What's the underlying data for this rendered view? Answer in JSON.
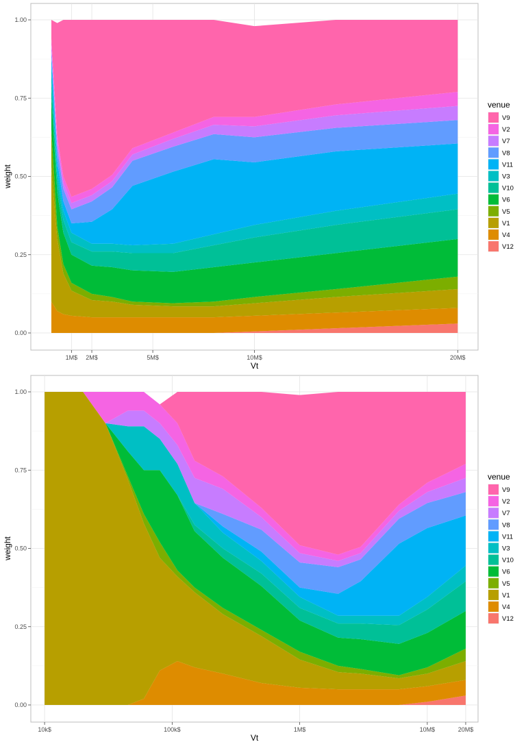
{
  "colors": {
    "V9": "#FF65AC",
    "V2": "#F564E3",
    "V7": "#C77CFF",
    "V8": "#619CFF",
    "V11": "#00B3F5",
    "V3": "#00BFC4",
    "V10": "#00C097",
    "V6": "#00BC38",
    "V5": "#7CAE00",
    "V1": "#B79F00",
    "V4": "#DE8C00",
    "V12": "#F8766D"
  },
  "chart_data": [
    {
      "type": "area",
      "stacked": true,
      "xscale": "linear",
      "xlabel": "Vt",
      "ylabel": "weight",
      "xlim": [
        -1000000,
        21000000
      ],
      "ylim": [
        0,
        1
      ],
      "x_ticks": [
        1000000,
        2000000,
        5000000,
        10000000,
        20000000
      ],
      "x_tick_labels": [
        "1M$",
        "2M$",
        "5M$",
        "10M$",
        "20M$"
      ],
      "y_ticks": [
        0,
        0.25,
        0.5,
        0.75,
        1
      ],
      "y_tick_labels": [
        "0.00",
        "0.25",
        "0.50",
        "0.75",
        "1.00"
      ],
      "legend": {
        "title": "venue",
        "position": "right",
        "entries": [
          "V9",
          "V2",
          "V7",
          "V8",
          "V11",
          "V3",
          "V10",
          "V6",
          "V5",
          "V1",
          "V4",
          "V12"
        ]
      },
      "stack_order_bottom_to_top": [
        "V12",
        "V4",
        "V1",
        "V5",
        "V6",
        "V10",
        "V3",
        "V11",
        "V8",
        "V7",
        "V2",
        "V9"
      ],
      "x": [
        10000,
        300000,
        600000,
        1000000,
        2000000,
        3000000,
        4000000,
        6000000,
        8000000,
        10000000,
        14000000,
        20000000
      ],
      "series": [
        {
          "name": "V12",
          "values": [
            0,
            0,
            0,
            0,
            0,
            0,
            0,
            0,
            0,
            0.005,
            0.015,
            0.03
          ]
        },
        {
          "name": "V4",
          "values": [
            0.1,
            0.07,
            0.06,
            0.055,
            0.05,
            0.05,
            0.05,
            0.05,
            0.05,
            0.05,
            0.05,
            0.05
          ]
        },
        {
          "name": "V1",
          "values": [
            0.43,
            0.23,
            0.13,
            0.08,
            0.055,
            0.05,
            0.04,
            0.035,
            0.035,
            0.04,
            0.05,
            0.06
          ]
        },
        {
          "name": "V5",
          "values": [
            0.12,
            0.04,
            0.03,
            0.025,
            0.02,
            0.015,
            0.01,
            0.01,
            0.015,
            0.02,
            0.025,
            0.04
          ]
        },
        {
          "name": "V6",
          "values": [
            0.1,
            0.11,
            0.1,
            0.09,
            0.09,
            0.095,
            0.1,
            0.1,
            0.11,
            0.11,
            0.115,
            0.12
          ]
        },
        {
          "name": "V10",
          "values": [
            0.05,
            0.04,
            0.04,
            0.04,
            0.045,
            0.05,
            0.055,
            0.06,
            0.07,
            0.08,
            0.09,
            0.095
          ]
        },
        {
          "name": "V3",
          "values": [
            0.05,
            0.03,
            0.03,
            0.03,
            0.025,
            0.025,
            0.025,
            0.03,
            0.035,
            0.04,
            0.045,
            0.05
          ]
        },
        {
          "name": "V11",
          "values": [
            0.03,
            0.03,
            0.03,
            0.03,
            0.07,
            0.11,
            0.19,
            0.23,
            0.24,
            0.2,
            0.19,
            0.16
          ]
        },
        {
          "name": "V8",
          "values": [
            0.02,
            0.04,
            0.04,
            0.045,
            0.065,
            0.07,
            0.08,
            0.08,
            0.08,
            0.08,
            0.075,
            0.075
          ]
        },
        {
          "name": "V7",
          "values": [
            0.02,
            0.02,
            0.02,
            0.02,
            0.02,
            0.02,
            0.02,
            0.025,
            0.03,
            0.035,
            0.04,
            0.045
          ]
        },
        {
          "name": "V2",
          "values": [
            0.02,
            0.02,
            0.02,
            0.02,
            0.02,
            0.02,
            0.02,
            0.02,
            0.025,
            0.03,
            0.035,
            0.045
          ]
        },
        {
          "name": "V9",
          "values": [
            0.06,
            0.36,
            0.5,
            0.565,
            0.54,
            0.495,
            0.41,
            0.36,
            0.31,
            0.29,
            0.27,
            0.23
          ]
        }
      ]
    },
    {
      "type": "area",
      "stacked": true,
      "xscale": "log10",
      "xlabel": "Vt",
      "ylabel": "weight",
      "xlim": [
        7800,
        25000000
      ],
      "ylim": [
        0,
        1
      ],
      "x_ticks": [
        10000,
        100000,
        1000000,
        10000000,
        20000000
      ],
      "x_tick_labels": [
        "10k$",
        "100k$",
        "1M$",
        "10M$",
        "20M$"
      ],
      "y_ticks": [
        0,
        0.25,
        0.5,
        0.75,
        1
      ],
      "y_tick_labels": [
        "0.00",
        "0.25",
        "0.50",
        "0.75",
        "1.00"
      ],
      "legend": {
        "title": "venue",
        "position": "right",
        "entries": [
          "V9",
          "V2",
          "V7",
          "V8",
          "V11",
          "V3",
          "V10",
          "V6",
          "V5",
          "V1",
          "V4",
          "V12"
        ]
      },
      "stack_order_bottom_to_top": [
        "V12",
        "V4",
        "V1",
        "V5",
        "V6",
        "V10",
        "V3",
        "V11",
        "V8",
        "V7",
        "V2",
        "V9"
      ],
      "x": [
        10000,
        20000,
        30000,
        45000,
        60000,
        80000,
        110000,
        150000,
        250000,
        500000,
        1000000,
        2000000,
        3000000,
        6000000,
        10000000,
        20000000
      ],
      "series": [
        {
          "name": "V12",
          "values": [
            0,
            0,
            0,
            0,
            0,
            0,
            0,
            0,
            0,
            0,
            0,
            0,
            0,
            0,
            0.01,
            0.03
          ]
        },
        {
          "name": "V4",
          "values": [
            0,
            0,
            0,
            0,
            0.02,
            0.11,
            0.14,
            0.12,
            0.1,
            0.07,
            0.055,
            0.05,
            0.05,
            0.05,
            0.05,
            0.05
          ]
        },
        {
          "name": "V1",
          "values": [
            1,
            1,
            0.9,
            0.72,
            0.56,
            0.36,
            0.27,
            0.24,
            0.19,
            0.15,
            0.09,
            0.055,
            0.05,
            0.035,
            0.04,
            0.06
          ]
        },
        {
          "name": "V5",
          "values": [
            0,
            0,
            0,
            0.01,
            0.03,
            0.05,
            0.02,
            0.015,
            0.02,
            0.02,
            0.025,
            0.02,
            0.015,
            0.01,
            0.02,
            0.04
          ]
        },
        {
          "name": "V6",
          "values": [
            0,
            0,
            0,
            0.08,
            0.14,
            0.23,
            0.24,
            0.18,
            0.16,
            0.14,
            0.1,
            0.09,
            0.095,
            0.1,
            0.11,
            0.12
          ]
        },
        {
          "name": "V10",
          "values": [
            0,
            0,
            0,
            0,
            0,
            0,
            0,
            0.02,
            0.03,
            0.04,
            0.04,
            0.045,
            0.05,
            0.06,
            0.075,
            0.095
          ]
        },
        {
          "name": "V3",
          "values": [
            0,
            0,
            0,
            0.08,
            0.14,
            0.1,
            0.1,
            0.07,
            0.05,
            0.04,
            0.035,
            0.025,
            0.025,
            0.03,
            0.04,
            0.05
          ]
        },
        {
          "name": "V11",
          "values": [
            0,
            0,
            0,
            0,
            0,
            0,
            0,
            0,
            0.02,
            0.03,
            0.03,
            0.07,
            0.11,
            0.23,
            0.22,
            0.16
          ]
        },
        {
          "name": "V8",
          "values": [
            0,
            0,
            0,
            0,
            0,
            0,
            0,
            0,
            0.04,
            0.07,
            0.08,
            0.085,
            0.07,
            0.08,
            0.08,
            0.075
          ]
        },
        {
          "name": "V7",
          "values": [
            0,
            0,
            0,
            0.05,
            0.05,
            0.05,
            0.06,
            0.08,
            0.08,
            0.04,
            0.03,
            0.02,
            0.02,
            0.025,
            0.035,
            0.045
          ]
        },
        {
          "name": "V2",
          "values": [
            0,
            0,
            0.1,
            0.06,
            0.06,
            0.06,
            0.07,
            0.055,
            0.04,
            0.03,
            0.025,
            0.02,
            0.02,
            0.02,
            0.03,
            0.045
          ]
        },
        {
          "name": "V9",
          "values": [
            0,
            0,
            0,
            0,
            0,
            0,
            0.1,
            0.22,
            0.27,
            0.37,
            0.48,
            0.52,
            0.495,
            0.36,
            0.29,
            0.23
          ]
        }
      ]
    }
  ]
}
